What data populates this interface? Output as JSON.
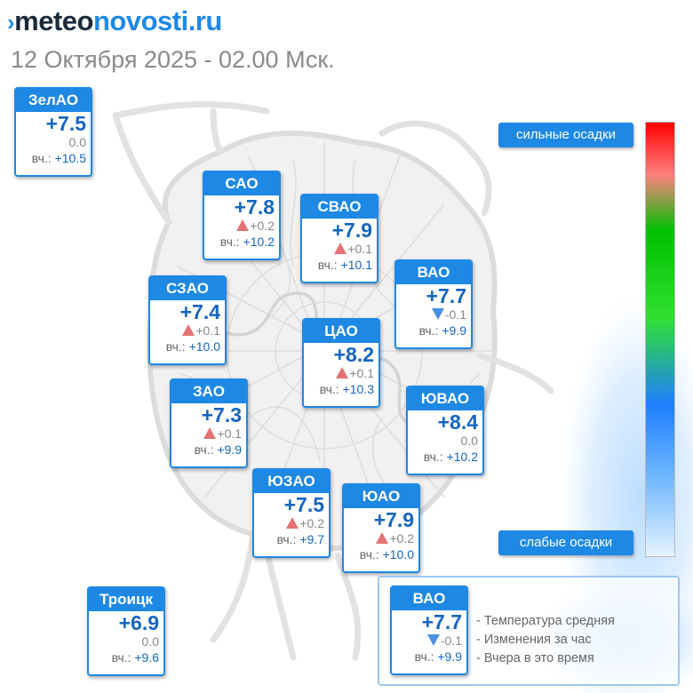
{
  "header": {
    "logo_arrow": "›",
    "logo_meteo": "meteo",
    "logo_novosti": "novosti.ru",
    "subtitle": "12 Октября 2025 - 02.00 Мск."
  },
  "colors": {
    "accent": "#1e88e5",
    "temp_text": "#1565c0",
    "rise": "#e57373",
    "fall": "#4a90e2"
  },
  "scale": {
    "top_label": "сильные осадки",
    "bottom_label": "слабые осадки"
  },
  "districts": {
    "zelao": {
      "name": "ЗелАО",
      "temp": "+7.5",
      "change": "0.0",
      "yest_label": "вч.:",
      "yest": "+10.5"
    },
    "sao": {
      "name": "САО",
      "temp": "+7.8",
      "change": "+0.2",
      "yest_label": "вч.:",
      "yest": "+10.2"
    },
    "svao": {
      "name": "СВАО",
      "temp": "+7.9",
      "change": "+0.1",
      "yest_label": "вч.:",
      "yest": "+10.1"
    },
    "vao": {
      "name": "ВАО",
      "temp": "+7.7",
      "change": "-0.1",
      "yest_label": "вч.:",
      "yest": "+9.9"
    },
    "szao": {
      "name": "СЗАО",
      "temp": "+7.4",
      "change": "+0.1",
      "yest_label": "вч.:",
      "yest": "+10.0"
    },
    "cao": {
      "name": "ЦАО",
      "temp": "+8.2",
      "change": "+0.1",
      "yest_label": "вч.:",
      "yest": "+10.3"
    },
    "zao": {
      "name": "ЗАО",
      "temp": "+7.3",
      "change": "+0.1",
      "yest_label": "вч.:",
      "yest": "+9.9"
    },
    "yuvao": {
      "name": "ЮВАО",
      "temp": "+8.4",
      "change": "0.0",
      "yest_label": "вч.:",
      "yest": "+10.2"
    },
    "yuzao": {
      "name": "ЮЗАО",
      "temp": "+7.5",
      "change": "+0.2",
      "yest_label": "вч.:",
      "yest": "+9.7"
    },
    "yuao": {
      "name": "ЮАО",
      "temp": "+7.9",
      "change": "+0.2",
      "yest_label": "вч.:",
      "yest": "+10.0"
    },
    "troick": {
      "name": "Троицк",
      "temp": "+6.9",
      "change": "0.0",
      "yest_label": "вч.:",
      "yest": "+9.6"
    }
  },
  "legend": {
    "sample": {
      "name": "ВАО",
      "temp": "+7.7",
      "change": "-0.1",
      "yest_label": "вч.:",
      "yest": "+9.9"
    },
    "line1": "- Температура средняя",
    "line2": "- Изменения за час",
    "line3": "- Вчера в это время"
  }
}
